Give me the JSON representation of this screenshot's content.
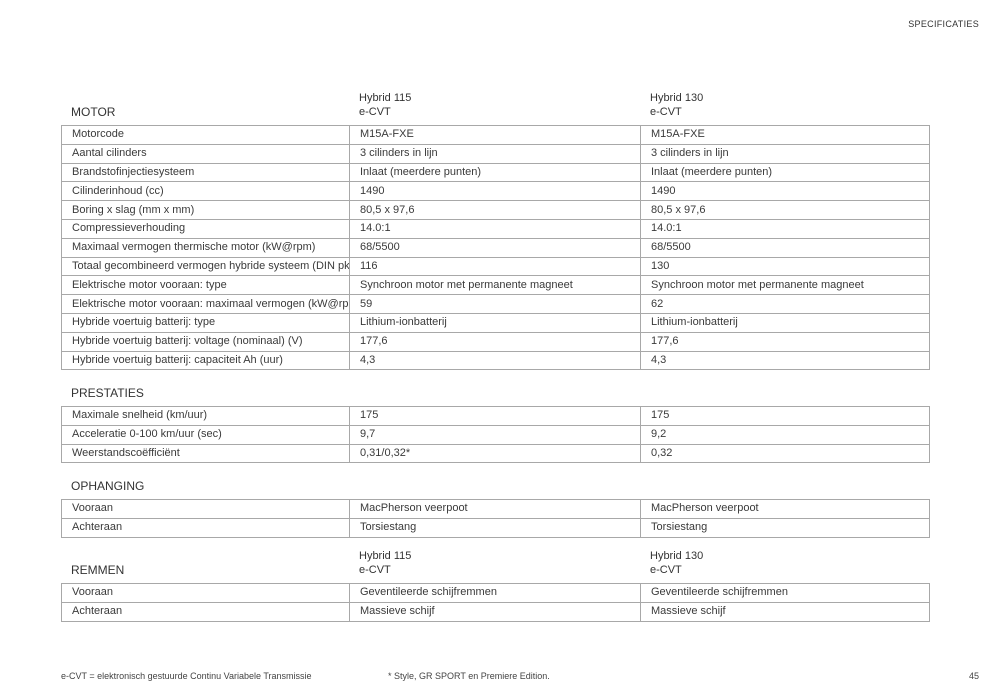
{
  "header": "SPECIFICATIES",
  "columns": {
    "col1": [
      "Hybrid 115",
      "e-CVT"
    ],
    "col2": [
      "Hybrid 130",
      "e-CVT"
    ]
  },
  "sections": [
    {
      "title": "MOTOR",
      "show_columns": true,
      "rows": [
        [
          "Motorcode",
          "M15A-FXE",
          "M15A-FXE"
        ],
        [
          "Aantal cilinders",
          "3 cilinders in lijn",
          "3 cilinders in lijn"
        ],
        [
          "Brandstofinjectiesysteem",
          "Inlaat (meerdere punten)",
          "Inlaat (meerdere punten)"
        ],
        [
          "Cilinderinhoud (cc)",
          "1490",
          "1490"
        ],
        [
          "Boring x slag (mm x mm)",
          "80,5 x 97,6",
          "80,5 x 97,6"
        ],
        [
          "Compressieverhouding",
          "14.0:1",
          "14.0:1"
        ],
        [
          "Maximaal vermogen thermische motor (kW@rpm)",
          "68/5500",
          "68/5500"
        ],
        [
          "Totaal gecombineerd vermogen hybride systeem (DIN pk)",
          "116",
          "130"
        ],
        [
          "Elektrische motor vooraan: type",
          "Synchroon motor met permanente magneet",
          "Synchroon motor met permanente magneet"
        ],
        [
          "Elektrische motor vooraan: maximaal vermogen (kW@rpm)",
          "59",
          "62"
        ],
        [
          "Hybride voertuig batterij: type",
          "Lithium-ionbatterij",
          "Lithium-ionbatterij"
        ],
        [
          "Hybride voertuig batterij: voltage (nominaal) (V)",
          "177,6",
          "177,6"
        ],
        [
          "Hybride voertuig batterij: capaciteit Ah (uur)",
          "4,3",
          "4,3"
        ]
      ]
    },
    {
      "title": "PRESTATIES",
      "show_columns": false,
      "rows": [
        [
          "Maximale snelheid (km/uur)",
          "175",
          "175"
        ],
        [
          "Acceleratie 0-100 km/uur (sec)",
          "9,7",
          "9,2"
        ],
        [
          "Weerstandscoëfficiënt",
          "0,31/0,32*",
          "0,32"
        ]
      ]
    },
    {
      "title": "OPHANGING",
      "show_columns": false,
      "rows": [
        [
          "Vooraan",
          "MacPherson veerpoot",
          "MacPherson veerpoot"
        ],
        [
          "Achteraan",
          "Torsiestang",
          "Torsiestang"
        ]
      ]
    },
    {
      "title": "REMMEN",
      "show_columns": true,
      "rows": [
        [
          "Vooraan",
          "Geventileerde schijfremmen",
          "Geventileerde schijfremmen"
        ],
        [
          "Achteraan",
          "Massieve schijf",
          "Massieve schijf"
        ]
      ]
    }
  ],
  "footer": {
    "note_left": "e-CVT = elektronisch gestuurde Continu Variabele Transmissie",
    "note_mid": "* Style, GR SPORT en Premiere Edition.",
    "page_number": "45"
  }
}
